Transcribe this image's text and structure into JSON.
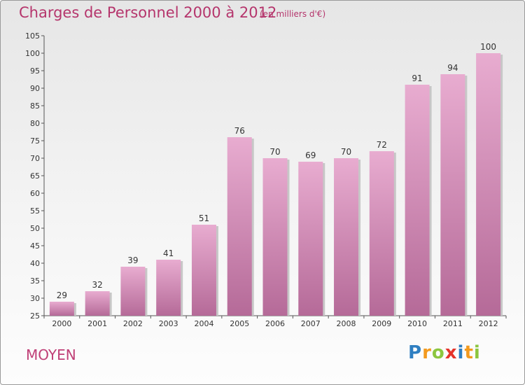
{
  "header": {
    "title": "Charges de Personnel 2000 à 2012",
    "subtitle": "(en milliers d'€)"
  },
  "footer": {
    "commune": "MOYEN",
    "logo_letters": [
      {
        "ch": "P",
        "color": "#2f7fc1"
      },
      {
        "ch": "r",
        "color": "#f39a1e"
      },
      {
        "ch": "o",
        "color": "#8cc63f"
      },
      {
        "ch": "x",
        "color": "#e5332a"
      },
      {
        "ch": "i",
        "color": "#2f7fc1"
      },
      {
        "ch": "t",
        "color": "#f39a1e"
      },
      {
        "ch": "i",
        "color": "#8cc63f"
      }
    ]
  },
  "colors": {
    "bar_light": "#e8acd0",
    "bar_dark": "#b56a98",
    "bar_shadow": "#c7c7c7",
    "text": "#b5356c"
  },
  "chart_data": {
    "type": "bar",
    "categories": [
      "2000",
      "2001",
      "2002",
      "2003",
      "2004",
      "2005",
      "2006",
      "2007",
      "2008",
      "2009",
      "2010",
      "2011",
      "2012"
    ],
    "values": [
      29,
      32,
      39,
      41,
      51,
      76,
      70,
      69,
      70,
      72,
      91,
      94,
      100
    ],
    "ylim": [
      25,
      105
    ],
    "yticks": [
      25,
      30,
      35,
      40,
      45,
      50,
      55,
      60,
      65,
      70,
      75,
      80,
      85,
      90,
      95,
      100,
      105
    ],
    "grid": false,
    "title": "Charges de Personnel 2000 à 2012",
    "xlabel": "",
    "ylabel": ""
  }
}
